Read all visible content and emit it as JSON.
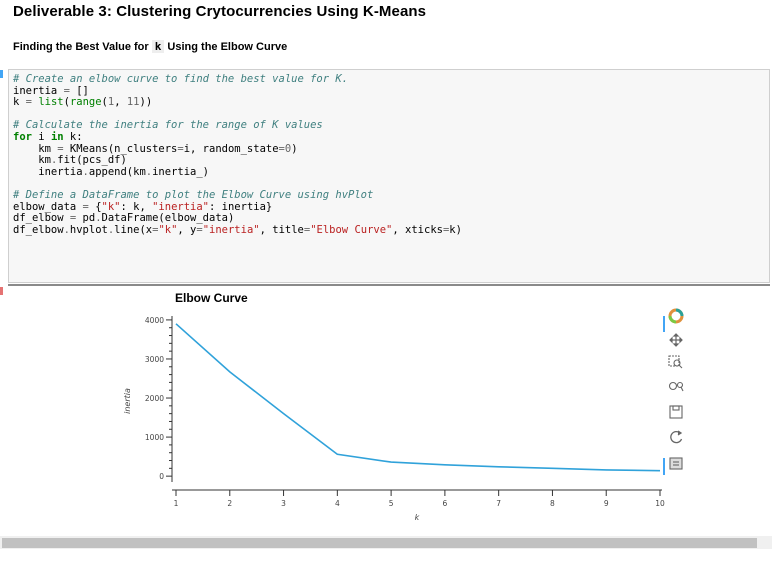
{
  "notebook": {
    "heading": "Deliverable 3: Clustering Crytocurrencies Using K-Means",
    "subheading_prefix": "Finding the Best Value for ",
    "subheading_code": "k",
    "subheading_suffix": " Using the Elbow Curve"
  },
  "code_lines": [
    [
      {
        "t": "cm",
        "v": "# Create an elbow curve to find the best value for K."
      }
    ],
    [
      {
        "t": "",
        "v": "inertia "
      },
      {
        "t": "op",
        "v": "="
      },
      {
        "t": "",
        "v": " []"
      }
    ],
    [
      {
        "t": "",
        "v": "k "
      },
      {
        "t": "op",
        "v": "="
      },
      {
        "t": "",
        "v": " "
      },
      {
        "t": "nb",
        "v": "list"
      },
      {
        "t": "",
        "v": "("
      },
      {
        "t": "nb",
        "v": "range"
      },
      {
        "t": "",
        "v": "("
      },
      {
        "t": "nu",
        "v": "1"
      },
      {
        "t": "",
        "v": ", "
      },
      {
        "t": "nu",
        "v": "11"
      },
      {
        "t": "",
        "v": "))"
      }
    ],
    [
      {
        "t": "",
        "v": ""
      }
    ],
    [
      {
        "t": "cm",
        "v": "# Calculate the inertia for the range of K values"
      }
    ],
    [
      {
        "t": "kw",
        "v": "for"
      },
      {
        "t": "",
        "v": " i "
      },
      {
        "t": "kw",
        "v": "in"
      },
      {
        "t": "",
        "v": " k:"
      }
    ],
    [
      {
        "t": "",
        "v": "    km "
      },
      {
        "t": "op",
        "v": "="
      },
      {
        "t": "",
        "v": " KMeans(n_clusters"
      },
      {
        "t": "op",
        "v": "="
      },
      {
        "t": "",
        "v": "i, random_state"
      },
      {
        "t": "op",
        "v": "="
      },
      {
        "t": "nu",
        "v": "0"
      },
      {
        "t": "",
        "v": ")"
      }
    ],
    [
      {
        "t": "",
        "v": "    km"
      },
      {
        "t": "op",
        "v": "."
      },
      {
        "t": "",
        "v": "fit(pcs_df)"
      }
    ],
    [
      {
        "t": "",
        "v": "    inertia"
      },
      {
        "t": "op",
        "v": "."
      },
      {
        "t": "",
        "v": "append(km"
      },
      {
        "t": "op",
        "v": "."
      },
      {
        "t": "",
        "v": "inertia_)"
      }
    ],
    [
      {
        "t": "",
        "v": ""
      }
    ],
    [
      {
        "t": "cm",
        "v": "# Define a DataFrame to plot the Elbow Curve using hvPlot"
      }
    ],
    [
      {
        "t": "",
        "v": "elbow_data "
      },
      {
        "t": "op",
        "v": "="
      },
      {
        "t": "",
        "v": " {"
      },
      {
        "t": "st",
        "v": "\"k\""
      },
      {
        "t": "",
        "v": ": k, "
      },
      {
        "t": "st",
        "v": "\"inertia\""
      },
      {
        "t": "",
        "v": ": inertia}"
      }
    ],
    [
      {
        "t": "",
        "v": "df_elbow "
      },
      {
        "t": "op",
        "v": "="
      },
      {
        "t": "",
        "v": " pd"
      },
      {
        "t": "op",
        "v": "."
      },
      {
        "t": "",
        "v": "DataFrame(elbow_data)"
      }
    ],
    [
      {
        "t": "",
        "v": "df_elbow"
      },
      {
        "t": "op",
        "v": "."
      },
      {
        "t": "",
        "v": "hvplot"
      },
      {
        "t": "op",
        "v": "."
      },
      {
        "t": "",
        "v": "line(x"
      },
      {
        "t": "op",
        "v": "="
      },
      {
        "t": "st",
        "v": "\"k\""
      },
      {
        "t": "",
        "v": ", y"
      },
      {
        "t": "op",
        "v": "="
      },
      {
        "t": "st",
        "v": "\"inertia\""
      },
      {
        "t": "",
        "v": ", title"
      },
      {
        "t": "op",
        "v": "="
      },
      {
        "t": "st",
        "v": "\"Elbow Curve\""
      },
      {
        "t": "",
        "v": ", xticks"
      },
      {
        "t": "op",
        "v": "="
      },
      {
        "t": "",
        "v": "k)"
      }
    ]
  ],
  "chart_data": {
    "type": "line",
    "title": "Elbow Curve",
    "xlabel": "k",
    "ylabel": "inertia",
    "x": [
      1,
      2,
      3,
      4,
      5,
      6,
      7,
      8,
      9,
      10
    ],
    "series": [
      {
        "values": [
          3900,
          2670,
          1600,
          560,
          360,
          290,
          240,
          200,
          160,
          140
        ],
        "color": "#30a2da"
      }
    ],
    "xticks": [
      "1",
      "2",
      "3",
      "4",
      "5",
      "6",
      "7",
      "8",
      "9",
      "10"
    ],
    "yticks": [
      0,
      1000,
      2000,
      3000,
      4000
    ],
    "ytick_labels": [
      "0",
      "1000",
      "2000",
      "3000",
      "4000"
    ],
    "xlim": [
      1,
      10
    ],
    "ylim": [
      -150,
      4100
    ],
    "grid": false
  },
  "toolbar": [
    {
      "name": "bokeh-logo-icon"
    },
    {
      "name": "pan-icon"
    },
    {
      "name": "box-zoom-icon"
    },
    {
      "name": "wheel-zoom-icon"
    },
    {
      "name": "save-icon"
    },
    {
      "name": "reset-icon"
    },
    {
      "name": "hover-icon"
    }
  ]
}
